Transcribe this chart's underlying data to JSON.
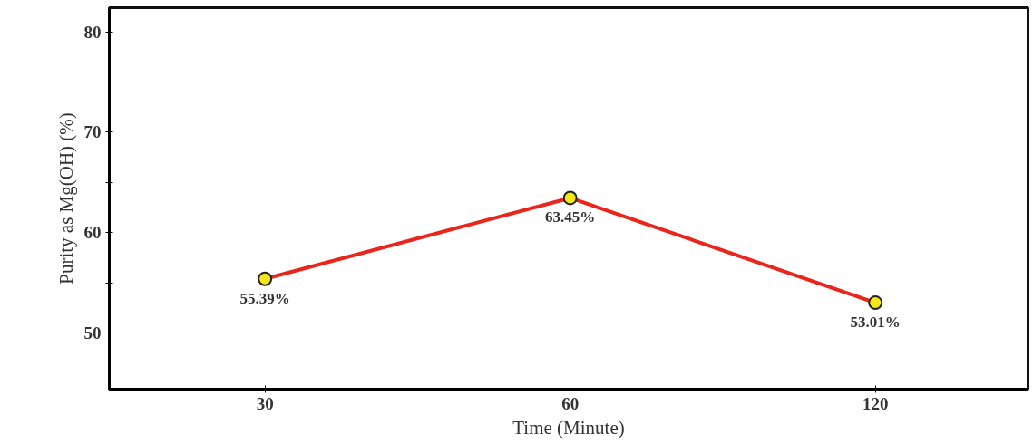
{
  "chart_data": {
    "type": "line",
    "xlabel": "Time (Minute)",
    "ylabel": "Purity as Mg(OH) (%)",
    "categories": [
      "30",
      "60",
      "120"
    ],
    "series": [
      {
        "color": "#e8261c",
        "values": [
          55.39,
          63.45,
          53.01
        ],
        "value_labels": [
          "55.39%",
          "63.45%",
          "53.01%"
        ]
      }
    ],
    "ylim": [
      44.4,
      82.4
    ],
    "yticks": [
      50,
      {
        "value": 55,
        "label": null
      },
      60,
      {
        "value": 65,
        "label": null
      },
      70,
      {
        "value": 75,
        "label": null
      },
      80
    ],
    "marker": "circle",
    "line_style": "solid",
    "grid": false
  }
}
